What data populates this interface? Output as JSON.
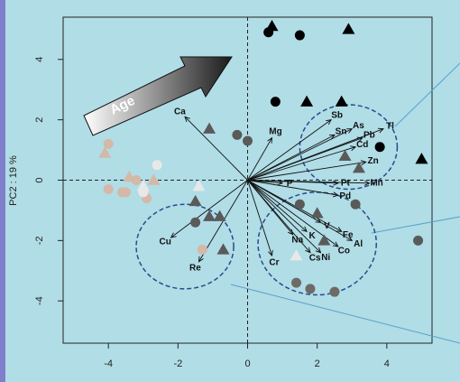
{
  "chart_data": {
    "type": "scatter",
    "title": "",
    "xlabel": "",
    "ylabel": "PC2 : 19 %",
    "xlim": [
      -5.3,
      5.3
    ],
    "ylim": [
      -5.4,
      5.4
    ],
    "x_ticks": [
      "-4",
      "-2",
      "0",
      "2",
      "4"
    ],
    "y_ticks": [
      "-4",
      "-2",
      "0",
      "2",
      "4"
    ],
    "x_tick_values": [
      -4,
      -2,
      0,
      2,
      4
    ],
    "y_tick_values": [
      -4,
      -2,
      0,
      2,
      4
    ],
    "grid": false,
    "reference_lines": {
      "x": 0,
      "y": 0,
      "style": "dashed"
    },
    "annotation": "Age",
    "loadings": [
      {
        "label": "Ca",
        "x": -1.8,
        "y": 2.1
      },
      {
        "label": "Mg",
        "x": 0.7,
        "y": 1.4
      },
      {
        "label": "Sb",
        "x": 2.4,
        "y": 2.0
      },
      {
        "label": "Sn",
        "x": 2.5,
        "y": 1.5
      },
      {
        "label": "As",
        "x": 3.0,
        "y": 1.7
      },
      {
        "label": "Tl",
        "x": 3.9,
        "y": 1.7
      },
      {
        "label": "Pb",
        "x": 3.3,
        "y": 1.4
      },
      {
        "label": "Cd",
        "x": 3.1,
        "y": 1.1
      },
      {
        "label": "Zn",
        "x": 3.4,
        "y": 0.6
      },
      {
        "label": "P",
        "x": 1.0,
        "y": -0.1
      },
      {
        "label": "Pt",
        "x": 2.6,
        "y": -0.1
      },
      {
        "label": "Mn",
        "x": 3.5,
        "y": -0.1
      },
      {
        "label": "Pd",
        "x": 2.6,
        "y": -0.5
      },
      {
        "label": "Na",
        "x": 1.3,
        "y": -1.8
      },
      {
        "label": "K",
        "x": 1.7,
        "y": -1.7
      },
      {
        "label": "V",
        "x": 2.1,
        "y": -1.4
      },
      {
        "label": "Fe",
        "x": 2.7,
        "y": -1.7
      },
      {
        "label": "Al",
        "x": 3.0,
        "y": -2.0
      },
      {
        "label": "Co",
        "x": 2.6,
        "y": -2.2
      },
      {
        "label": "Ni",
        "x": 2.1,
        "y": -2.4
      },
      {
        "label": "Cs",
        "x": 1.8,
        "y": -2.4
      },
      {
        "label": "Cr",
        "x": 0.7,
        "y": -2.5
      },
      {
        "label": "Cu",
        "x": -2.2,
        "y": -1.9
      },
      {
        "label": "Re",
        "x": -1.4,
        "y": -2.7
      }
    ],
    "points": [
      {
        "x": 0.7,
        "y": 5.1,
        "shape": "triangle",
        "color": "#000000"
      },
      {
        "x": 0.6,
        "y": 4.9,
        "shape": "circle",
        "color": "#000000"
      },
      {
        "x": 1.5,
        "y": 4.8,
        "shape": "circle",
        "color": "#000000"
      },
      {
        "x": 2.9,
        "y": 5.0,
        "shape": "triangle",
        "color": "#000000"
      },
      {
        "x": 0.8,
        "y": 2.6,
        "shape": "circle",
        "color": "#000000"
      },
      {
        "x": 1.7,
        "y": 2.6,
        "shape": "triangle",
        "color": "#000000"
      },
      {
        "x": 2.7,
        "y": 2.6,
        "shape": "triangle",
        "color": "#000000"
      },
      {
        "x": 3.8,
        "y": 1.1,
        "shape": "circle",
        "color": "#000000"
      },
      {
        "x": 5.0,
        "y": 0.7,
        "shape": "triangle",
        "color": "#000000"
      },
      {
        "x": -1.1,
        "y": 1.7,
        "shape": "triangle",
        "color": "#5a5a5a"
      },
      {
        "x": -0.3,
        "y": 1.5,
        "shape": "circle",
        "color": "#5a5a5a"
      },
      {
        "x": 0.0,
        "y": 1.3,
        "shape": "circle",
        "color": "#5a5a5a"
      },
      {
        "x": 2.8,
        "y": 0.8,
        "shape": "triangle",
        "color": "#5a5a5a"
      },
      {
        "x": 3.2,
        "y": 0.4,
        "shape": "triangle",
        "color": "#5a5a5a"
      },
      {
        "x": 1.5,
        "y": -0.8,
        "shape": "circle",
        "color": "#5a5a5a"
      },
      {
        "x": 3.1,
        "y": -0.8,
        "shape": "circle",
        "color": "#5a5a5a"
      },
      {
        "x": 2.0,
        "y": -1.1,
        "shape": "triangle",
        "color": "#5a5a5a"
      },
      {
        "x": 2.2,
        "y": -2.0,
        "shape": "triangle",
        "color": "#5a5a5a"
      },
      {
        "x": 4.9,
        "y": -2.0,
        "shape": "circle",
        "color": "#5a5a5a"
      },
      {
        "x": 1.4,
        "y": -3.4,
        "shape": "circle",
        "color": "#6e6a66"
      },
      {
        "x": 1.8,
        "y": -3.6,
        "shape": "circle",
        "color": "#6e6a66"
      },
      {
        "x": 2.5,
        "y": -3.7,
        "shape": "circle",
        "color": "#6e6a66"
      },
      {
        "x": -1.5,
        "y": -0.7,
        "shape": "triangle",
        "color": "#5a5a5a"
      },
      {
        "x": -1.1,
        "y": -1.2,
        "shape": "triangle",
        "color": "#5a5a5a"
      },
      {
        "x": -0.8,
        "y": -1.2,
        "shape": "triangle",
        "color": "#5a5a5a"
      },
      {
        "x": -1.5,
        "y": -1.4,
        "shape": "circle",
        "color": "#5a5a5a"
      },
      {
        "x": -0.7,
        "y": -2.3,
        "shape": "triangle",
        "color": "#5a5a5a"
      },
      {
        "x": -4.0,
        "y": 1.2,
        "shape": "circle",
        "color": "#d4b8a8"
      },
      {
        "x": -4.1,
        "y": 0.9,
        "shape": "triangle",
        "color": "#d4b8a8"
      },
      {
        "x": -3.4,
        "y": 0.1,
        "shape": "triangle",
        "color": "#d4b8a8"
      },
      {
        "x": -3.2,
        "y": 0.0,
        "shape": "circle",
        "color": "#d4b8a8"
      },
      {
        "x": -2.7,
        "y": 0.0,
        "shape": "triangle",
        "color": "#d4b8a8"
      },
      {
        "x": -4.0,
        "y": -0.3,
        "shape": "circle",
        "color": "#d4b8a8"
      },
      {
        "x": -3.6,
        "y": -0.4,
        "shape": "circle",
        "color": "#d4b8a8"
      },
      {
        "x": -3.5,
        "y": -0.4,
        "shape": "circle",
        "color": "#d4b8a8"
      },
      {
        "x": -2.9,
        "y": -0.6,
        "shape": "circle",
        "color": "#d4b8a8"
      },
      {
        "x": -2.6,
        "y": 0.5,
        "shape": "circle",
        "color": "#e8e8e8"
      },
      {
        "x": -3.0,
        "y": -0.2,
        "shape": "triangle",
        "color": "#e8e8e8"
      },
      {
        "x": -3.0,
        "y": -0.4,
        "shape": "circle",
        "color": "#e8e8e8"
      },
      {
        "x": -1.4,
        "y": -0.2,
        "shape": "triangle",
        "color": "#e8e8e8"
      },
      {
        "x": -1.3,
        "y": -2.3,
        "shape": "circle",
        "color": "#d4b8a8"
      },
      {
        "x": 1.4,
        "y": -2.5,
        "shape": "triangle",
        "color": "#e8e8e8"
      }
    ],
    "circles": [
      {
        "cx": 2.9,
        "cy": 1.1,
        "r": 1.4
      },
      {
        "cx": 2.0,
        "cy": -2.1,
        "r": 1.7
      },
      {
        "cx": -1.8,
        "cy": -2.2,
        "r": 1.4
      }
    ]
  }
}
